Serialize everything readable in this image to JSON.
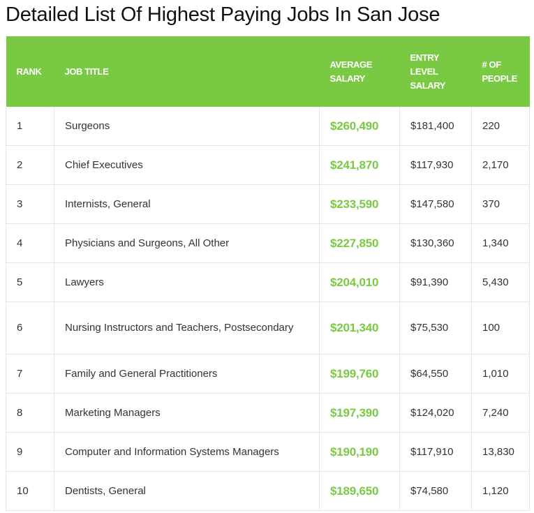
{
  "page": {
    "title": "Detailed List Of Highest Paying Jobs In San Jose"
  },
  "table": {
    "headers": {
      "rank": "RANK",
      "job_title": "JOB TITLE",
      "average_salary": "AVERAGE SALARY",
      "entry_level_salary": "ENTRY LEVEL SALARY",
      "num_people": "# OF PEOPLE"
    },
    "rows": [
      {
        "rank": "1",
        "job_title": "Surgeons",
        "average_salary": "$260,490",
        "entry_level_salary": "$181,400",
        "num_people": "220"
      },
      {
        "rank": "2",
        "job_title": "Chief Executives",
        "average_salary": "$241,870",
        "entry_level_salary": "$117,930",
        "num_people": "2,170"
      },
      {
        "rank": "3",
        "job_title": "Internists, General",
        "average_salary": "$233,590",
        "entry_level_salary": "$147,580",
        "num_people": "370"
      },
      {
        "rank": "4",
        "job_title": "Physicians and Surgeons, All Other",
        "average_salary": "$227,850",
        "entry_level_salary": "$130,360",
        "num_people": "1,340"
      },
      {
        "rank": "5",
        "job_title": "Lawyers",
        "average_salary": "$204,010",
        "entry_level_salary": "$91,390",
        "num_people": "5,430"
      },
      {
        "rank": "6",
        "job_title": "Nursing Instructors and Teachers, Postsecondary",
        "average_salary": "$201,340",
        "entry_level_salary": "$75,530",
        "num_people": "100"
      },
      {
        "rank": "7",
        "job_title": "Family and General Practitioners",
        "average_salary": "$199,760",
        "entry_level_salary": "$64,550",
        "num_people": "1,010"
      },
      {
        "rank": "8",
        "job_title": "Marketing Managers",
        "average_salary": "$197,390",
        "entry_level_salary": "$124,020",
        "num_people": "7,240"
      },
      {
        "rank": "9",
        "job_title": "Computer and Information Systems Managers",
        "average_salary": "$190,190",
        "entry_level_salary": "$117,910",
        "num_people": "13,830"
      },
      {
        "rank": "10",
        "job_title": "Dentists, General",
        "average_salary": "$189,650",
        "entry_level_salary": "$74,580",
        "num_people": "1,120"
      }
    ]
  },
  "colors": {
    "header_background": "#7ac943",
    "header_text": "#ffffff",
    "average_salary_text": "#7ac943",
    "body_text": "#333333",
    "grid_lines": "#e6e6e6"
  }
}
